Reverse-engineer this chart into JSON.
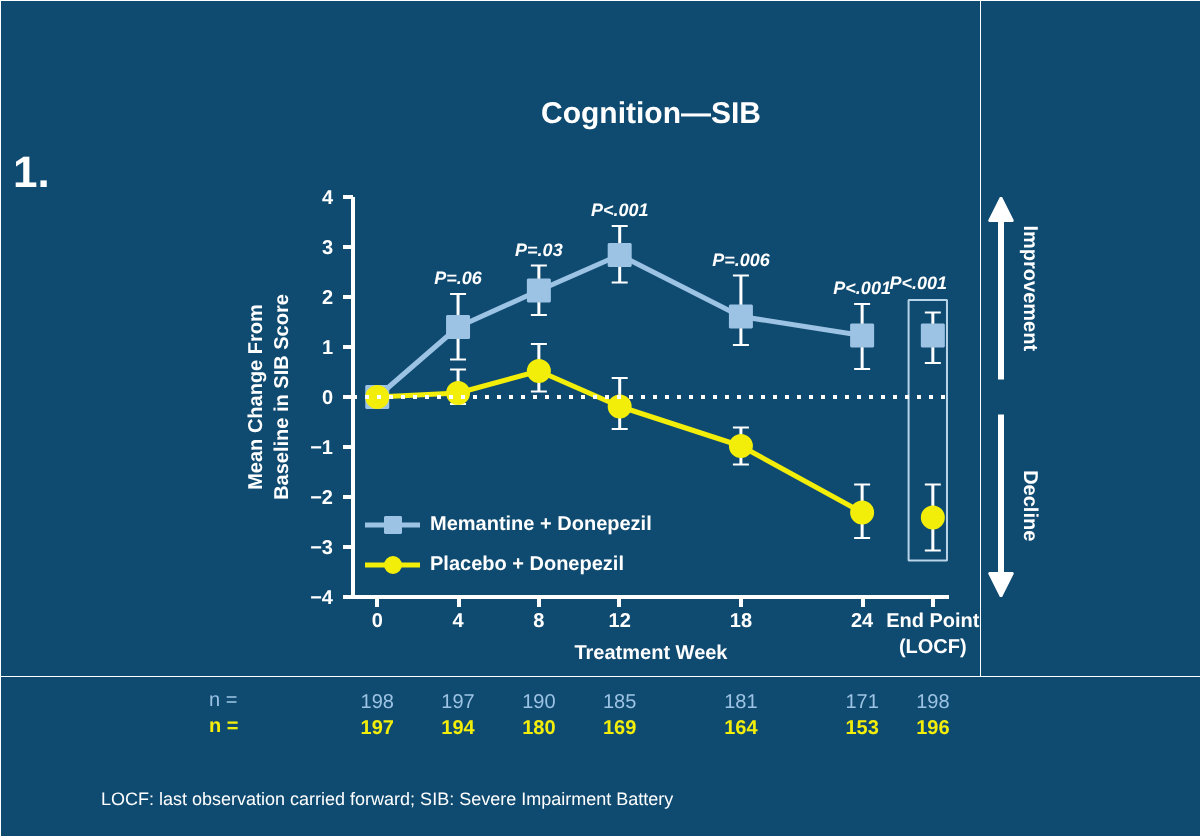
{
  "chart_data": {
    "type": "line",
    "title": "Cognition—SIB",
    "xlabel": "Treatment Week",
    "ylabel": "Mean Change From\nBaseline in SIB Score",
    "xlim": [
      -1.2,
      28.3
    ],
    "ylim": [
      -4,
      4
    ],
    "xticks": [
      0,
      4,
      8,
      12,
      18,
      24,
      {
        "value": 27.5,
        "label": "End Point\n(LOCF)"
      }
    ],
    "yticks": [
      -4,
      -3,
      -2,
      -1,
      0,
      1,
      2,
      3,
      4
    ],
    "grid": false,
    "legend": "bottom left",
    "line_style": "solid",
    "ref_lines": [
      {
        "axis": "y",
        "value": 0,
        "color": "#ffffff",
        "line_style": "dotted"
      }
    ],
    "series": [
      {
        "name": "Memantine + Donepezil",
        "marker": "square",
        "color": "#9cc3e4",
        "x": [
          0,
          4,
          8,
          12,
          18,
          24
        ],
        "values": [
          0,
          1.4,
          2.13,
          2.84,
          1.61,
          1.23
        ],
        "errors": [
          null,
          [
            0.75,
            2.06
          ],
          [
            1.64,
            2.63
          ],
          [
            2.29,
            3.42
          ],
          [
            1.04,
            2.43
          ],
          [
            0.56,
            1.86
          ]
        ]
      },
      {
        "name": "Placebo + Donepezil",
        "marker": "circle",
        "color": "#f2ee0a",
        "x": [
          0,
          4,
          8,
          12,
          18,
          24
        ],
        "values": [
          0,
          0.08,
          0.52,
          -0.19,
          -0.98,
          -2.31
        ],
        "errors": [
          null,
          [
            -0.14,
            0.55
          ],
          [
            0.11,
            1.06
          ],
          [
            -0.64,
            0.38
          ],
          [
            -1.35,
            -0.61
          ],
          [
            -2.82,
            -1.75
          ]
        ]
      },
      {
        "type": "scatter",
        "marker": "square",
        "color": "#9cc3e4",
        "x": [
          27.5
        ],
        "values": [
          1.23
        ],
        "errors": [
          [
            0.68,
            1.69
          ]
        ]
      },
      {
        "type": "scatter",
        "marker": "circle",
        "color": "#f2ee0a",
        "x": [
          27.5
        ],
        "values": [
          -2.41
        ],
        "errors": [
          [
            -3.07,
            -1.75
          ]
        ]
      }
    ],
    "annotations": [
      "1.",
      "P=.06",
      "P=.03",
      "P<.001",
      "P=.006",
      "P<.001",
      "P<.001",
      "Improvement",
      "Decline",
      "n =",
      "198",
      "197",
      "190",
      "185",
      "181",
      "171",
      "198",
      "n =",
      "197",
      "194",
      "180",
      "169",
      "164",
      "153",
      "196",
      "LOCF:  last observation carried forward; SIB: Severe Impairment Battery"
    ]
  }
}
